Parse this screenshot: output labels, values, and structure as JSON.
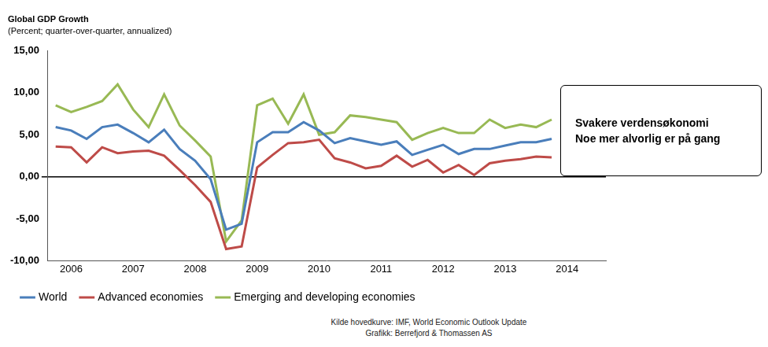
{
  "chart_data": {
    "type": "line",
    "title": "Global GDP Growth",
    "subtitle": "(Percent; quarter-over-quarter, annualized)",
    "annotations": [
      "Svakere verdensøkonomi",
      "Noe mer alvorlig er på gang"
    ],
    "source": [
      "Kilde hovedkurve: IMF,  World Economic Outlook Update",
      "Grafikk: Berrefjord & Thomassen AS"
    ],
    "categories": [
      null,
      "2006",
      null,
      null,
      null,
      "2007",
      null,
      null,
      null,
      "2008",
      null,
      null,
      null,
      "2009",
      null,
      null,
      null,
      "2010",
      null,
      null,
      null,
      "2011",
      null,
      null,
      null,
      "2012",
      null,
      null,
      null,
      "2013",
      null,
      null,
      null,
      "2014",
      null,
      null
    ],
    "series": [
      {
        "name": "World",
        "color": "#4a7ebb",
        "values": [
          5.9,
          5.5,
          4.5,
          5.9,
          6.2,
          5.2,
          4.1,
          5.6,
          3.3,
          1.9,
          -0.3,
          -6.3,
          -5.6,
          4.1,
          5.3,
          5.3,
          6.5,
          5.5,
          4.0,
          4.6,
          4.2,
          3.8,
          4.2,
          2.6,
          3.2,
          3.8,
          2.7,
          3.3,
          3.3,
          3.7,
          4.1,
          4.1,
          4.5,
          null,
          null,
          null
        ]
      },
      {
        "name": "Advanced economies",
        "color": "#be4b48",
        "values": [
          3.6,
          3.5,
          1.7,
          3.5,
          2.8,
          3.0,
          3.1,
          2.5,
          0.8,
          -1.0,
          -3.0,
          -8.6,
          -8.3,
          1.1,
          2.6,
          4.0,
          4.1,
          4.4,
          2.2,
          1.7,
          1.0,
          1.3,
          2.5,
          1.2,
          2.0,
          0.5,
          1.4,
          0.2,
          1.6,
          1.9,
          2.1,
          2.4,
          2.3,
          null,
          null,
          null
        ]
      },
      {
        "name": "Emerging and developing economies",
        "color": "#98b954",
        "values": [
          8.5,
          7.7,
          8.3,
          9.0,
          11.0,
          8.0,
          5.9,
          9.8,
          6.1,
          4.3,
          2.4,
          -7.7,
          -5.2,
          8.5,
          9.3,
          6.3,
          9.8,
          5.0,
          5.3,
          7.3,
          7.1,
          6.8,
          6.5,
          4.4,
          5.2,
          5.8,
          5.2,
          5.2,
          6.8,
          5.8,
          6.2,
          5.9,
          6.8,
          null,
          null,
          null
        ]
      }
    ],
    "ylim": [
      -10,
      15
    ],
    "yticks": [
      {
        "value": -10,
        "label": "-10,00"
      },
      {
        "value": -5,
        "label": "-5,00"
      },
      {
        "value": 0,
        "label": "0,00"
      },
      {
        "value": 5,
        "label": "5,00"
      },
      {
        "value": 10,
        "label": "10,00"
      },
      {
        "value": 15,
        "label": "15,00"
      }
    ],
    "grid": false,
    "legend": "bottom"
  }
}
